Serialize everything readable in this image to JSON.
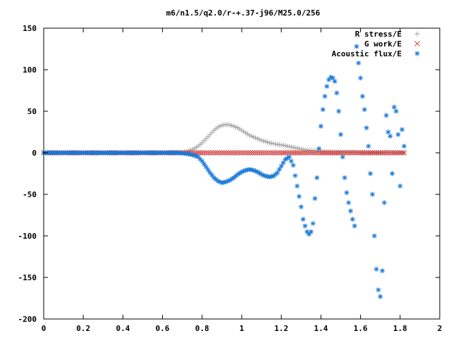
{
  "chart_data": {
    "type": "scatter",
    "title": "m6/n1.5/q2.0/r-+.37-j96/M25.0/256",
    "xlabel": "",
    "ylabel": "",
    "xlim": [
      0,
      2
    ],
    "ylim": [
      -200,
      150
    ],
    "xticks": [
      0,
      0.2,
      0.4,
      0.6,
      0.8,
      1,
      1.2,
      1.4,
      1.6,
      1.8,
      2
    ],
    "xtick_labels": [
      "0",
      "0.2",
      "0.4",
      "0.6",
      "0.8",
      "1",
      "1.2",
      "1.4",
      "1.6",
      "1.8",
      "2"
    ],
    "yticks": [
      -200,
      -150,
      -100,
      -50,
      0,
      50,
      100,
      150
    ],
    "ytick_labels": [
      "-200",
      "-150",
      "-100",
      "-50",
      "0",
      "50",
      "100",
      "150"
    ],
    "grid": false,
    "legend_position": "top-right",
    "series": [
      {
        "name": "R stress/E",
        "marker": "plus",
        "color": "#a0a0a0",
        "x": [
          0.0,
          0.1,
          0.2,
          0.3,
          0.4,
          0.5,
          0.6,
          0.65,
          0.7,
          0.72,
          0.74,
          0.76,
          0.78,
          0.8,
          0.82,
          0.84,
          0.86,
          0.88,
          0.9,
          0.92,
          0.94,
          0.96,
          0.98,
          1.0,
          1.02,
          1.04,
          1.06,
          1.08,
          1.1,
          1.12,
          1.14,
          1.16,
          1.18,
          1.2,
          1.22,
          1.24,
          1.26,
          1.28,
          1.3,
          1.32,
          1.34,
          1.36,
          1.38,
          1.4,
          1.45,
          1.5,
          1.55,
          1.6,
          1.65,
          1.7,
          1.75,
          1.8,
          1.82
        ],
        "y": [
          0,
          0,
          0,
          0,
          0,
          0,
          0,
          0.2,
          0.8,
          1.5,
          3,
          5,
          8,
          12,
          17,
          22,
          27,
          31,
          33,
          34,
          33.5,
          32,
          30,
          27,
          24,
          21,
          19,
          17,
          15,
          13.5,
          12,
          11,
          10,
          9.5,
          8.5,
          7.5,
          6.5,
          5.5,
          4.5,
          3.5,
          3,
          2.5,
          2,
          1.5,
          1,
          0.8,
          0.6,
          0.4,
          0.3,
          0.2,
          0.1,
          0,
          0
        ]
      },
      {
        "name": "G work/E",
        "marker": "cross",
        "color": "#d04040",
        "x": [
          0.0,
          0.1,
          0.2,
          0.3,
          0.4,
          0.5,
          0.6,
          0.7,
          0.76,
          0.8,
          0.9,
          1.0,
          1.1,
          1.2,
          1.22,
          1.24,
          1.3,
          1.4,
          1.43,
          1.5,
          1.6,
          1.64,
          1.7,
          1.8,
          1.82
        ],
        "y": [
          0,
          0,
          0,
          0,
          0,
          0,
          0,
          0,
          0,
          0,
          0,
          0,
          0,
          0,
          0,
          0,
          0,
          0,
          0,
          0,
          0,
          0,
          0,
          0,
          0
        ]
      },
      {
        "name": "Acoustic flux/E",
        "marker": "star",
        "color": "#1878d8",
        "x": [
          0.0,
          0.05,
          0.1,
          0.15,
          0.2,
          0.25,
          0.3,
          0.35,
          0.4,
          0.45,
          0.5,
          0.55,
          0.6,
          0.65,
          0.68,
          0.7,
          0.72,
          0.74,
          0.76,
          0.78,
          0.8,
          0.82,
          0.84,
          0.86,
          0.88,
          0.9,
          0.92,
          0.94,
          0.96,
          0.98,
          1.0,
          1.02,
          1.04,
          1.06,
          1.08,
          1.1,
          1.12,
          1.14,
          1.16,
          1.18,
          1.2,
          1.22,
          1.24,
          1.26,
          1.28,
          1.3,
          1.31,
          1.32,
          1.33,
          1.34,
          1.35,
          1.36,
          1.37,
          1.38,
          1.39,
          1.4,
          1.41,
          1.42,
          1.43,
          1.44,
          1.45,
          1.46,
          1.47,
          1.48,
          1.49,
          1.5,
          1.51,
          1.52,
          1.53,
          1.54,
          1.55,
          1.56,
          1.57,
          1.58,
          1.59,
          1.6,
          1.61,
          1.62,
          1.63,
          1.64,
          1.65,
          1.66,
          1.67,
          1.68,
          1.69,
          1.7,
          1.71,
          1.72,
          1.73,
          1.74,
          1.75,
          1.76,
          1.77,
          1.78,
          1.79,
          1.8,
          1.81,
          1.82
        ],
        "y": [
          0,
          0,
          0,
          0,
          0,
          0,
          0,
          0,
          0,
          0,
          0,
          0,
          0,
          0,
          0,
          -0.5,
          -1,
          -2,
          -3,
          -5,
          -10,
          -17,
          -24,
          -30,
          -34,
          -36,
          -35,
          -33,
          -30,
          -26,
          -23,
          -21,
          -20,
          -21,
          -23,
          -26,
          -28,
          -29,
          -28,
          -24,
          -16,
          -8,
          -5,
          -15,
          -40,
          -65,
          -80,
          -88,
          -95,
          -98,
          -95,
          -85,
          -55,
          -30,
          5,
          32,
          52,
          68,
          80,
          88,
          91,
          90,
          86,
          72,
          50,
          22,
          -5,
          -30,
          -48,
          -60,
          -70,
          -80,
          -88,
          128,
          108,
          90,
          68,
          52,
          30,
          8,
          -25,
          -50,
          -100,
          -140,
          -165,
          -173,
          -142,
          -60,
          45,
          25,
          20,
          -25,
          55,
          50,
          22,
          -40,
          28,
          8
        ]
      }
    ]
  }
}
